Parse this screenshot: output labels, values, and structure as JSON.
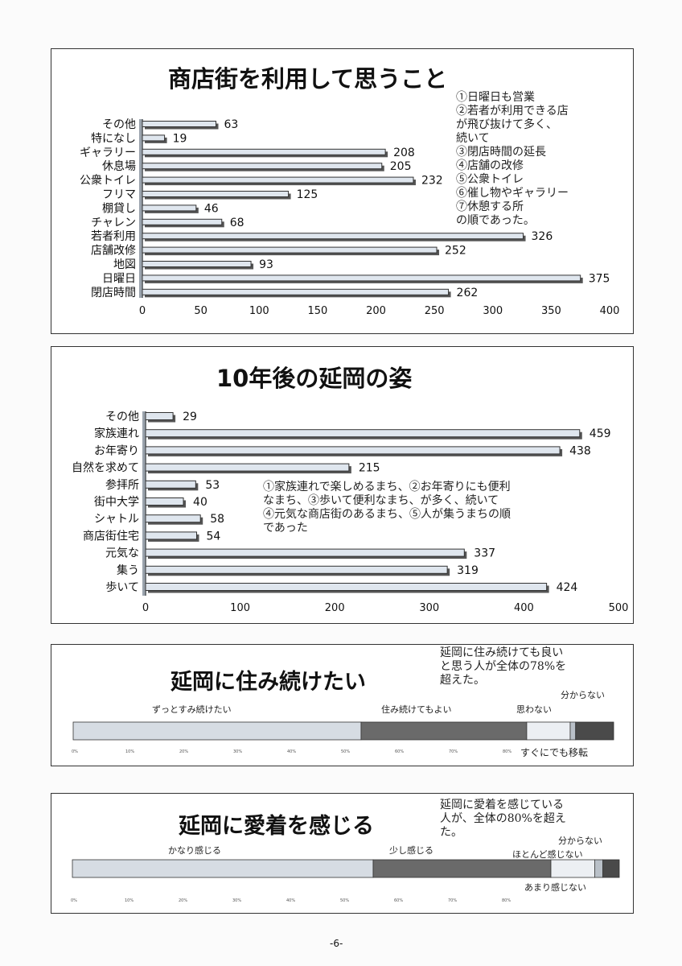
{
  "page_number": "-6-",
  "chart_data": [
    {
      "type": "bar",
      "orientation": "horizontal",
      "title": "商店街を利用して思うこと",
      "categories": [
        "その他",
        "特になし",
        "ギャラリー",
        "休息場",
        "公衆トイレ",
        "フリマ",
        "棚貸し",
        "チャレン",
        "若者利用",
        "店舗改修",
        "地図",
        "日曜日",
        "閉店時間"
      ],
      "values": [
        63,
        19,
        208,
        205,
        232,
        125,
        46,
        68,
        326,
        252,
        93,
        375,
        262
      ],
      "xlim": [
        0,
        400
      ],
      "xticks": [
        "0",
        "50",
        "100",
        "150",
        "200",
        "250",
        "300",
        "350",
        "400"
      ],
      "note": [
        "①日曜日も営業",
        "②若者が利用できる店",
        "が飛び抜けて多く、",
        "続いて",
        "③閉店時間の延長",
        "④店舗の改修",
        "⑤公衆トイレ",
        "⑥催し物やギャラリー",
        "⑦休憩する所",
        "の順であった。"
      ]
    },
    {
      "type": "bar",
      "orientation": "horizontal",
      "title": "10年後の延岡の姿",
      "categories": [
        "その他",
        "家族連れ",
        "お年寄り",
        "自然を求めて",
        "参拝所",
        "街中大学",
        "シャトル",
        "商店街住宅",
        "元気な",
        "集う",
        "歩いて"
      ],
      "values": [
        29,
        459,
        438,
        215,
        53,
        40,
        58,
        54,
        337,
        319,
        424
      ],
      "xlim": [
        0,
        500
      ],
      "xticks": [
        "0",
        "100",
        "200",
        "300",
        "400",
        "500"
      ],
      "note": [
        "①家族連れで楽しめるまち、②お年寄りにも便利",
        "なまち、③歩いて便利なまち、が多く、続いて",
        "④元気な商店街のあるまち、⑤人が集うまちの順",
        "であった"
      ]
    },
    {
      "type": "bar",
      "orientation": "stacked-100",
      "title": "延岡に住み続けたい",
      "note": [
        "延岡に住み続けても良い",
        "と思う人が全体の78%を",
        "超えた。"
      ],
      "segments": [
        {
          "label": "ずっとすみ続けたい",
          "value": 53,
          "color": "#d6dce3"
        },
        {
          "label": "住み続けてもよい",
          "value": 30.5,
          "color": "#6a6a6a"
        },
        {
          "label": "思わない",
          "value": 8,
          "color": "#eceff3"
        },
        {
          "label": "分からない",
          "value": 1,
          "color": "#b9c0c8"
        },
        {
          "label": "すぐにでも移転",
          "value": 7,
          "color": "#4a4a4a"
        }
      ],
      "xticks": [
        "0%",
        "10%",
        "20%",
        "30%",
        "40%",
        "50%",
        "60%",
        "70%",
        "80%"
      ]
    },
    {
      "type": "bar",
      "orientation": "stacked-100",
      "title": "延岡に愛着を感じる",
      "note": [
        "延岡に愛着を感じている",
        "人が、全体の80%を超え",
        "た。"
      ],
      "segments": [
        {
          "label": "かなり感じる",
          "value": 55,
          "color": "#d6dce3"
        },
        {
          "label": "少し感じる",
          "value": 32.5,
          "color": "#6a6a6a"
        },
        {
          "label": "ほとんど感じない",
          "value": 8,
          "color": "#eceff3"
        },
        {
          "label": "分からない",
          "value": 1.5,
          "color": "#b9c0c8"
        },
        {
          "label": "あまり感じない",
          "value": 3,
          "color": "#4a4a4a"
        }
      ],
      "xticks": [
        "0%",
        "10%",
        "20%",
        "30%",
        "40%",
        "50%",
        "60%",
        "70%",
        "80%"
      ]
    }
  ]
}
